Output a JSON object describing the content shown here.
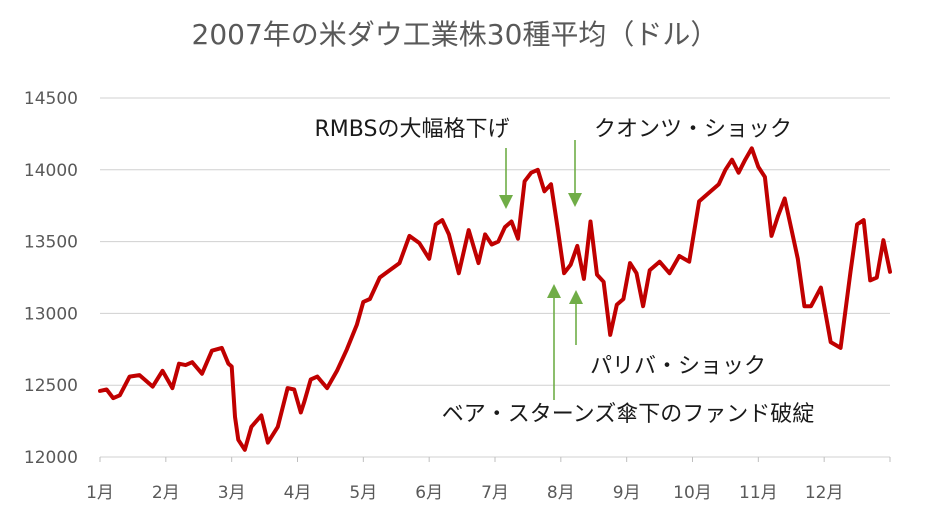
{
  "chart_data": {
    "type": "line",
    "title": "2007年の米ダウ工業株30種平均（ドル）",
    "xlabel": "",
    "ylabel": "",
    "ylim": [
      12000,
      14500
    ],
    "yticks": [
      12000,
      12500,
      13000,
      13500,
      14000,
      14500
    ],
    "grid": true,
    "categories": [
      "1月",
      "2月",
      "3月",
      "4月",
      "5月",
      "6月",
      "7月",
      "8月",
      "9月",
      "10月",
      "11月",
      "12月"
    ],
    "series": [
      {
        "color": "#c00000",
        "x": [
          0,
          0.1,
          0.2,
          0.3,
          0.45,
          0.6,
          0.8,
          0.95,
          1.1,
          1.2,
          1.3,
          1.4,
          1.55,
          1.7,
          1.85,
          1.95,
          2.0,
          2.05,
          2.1,
          2.2,
          2.3,
          2.45,
          2.55,
          2.7,
          2.85,
          2.95,
          3.05,
          3.1,
          3.2,
          3.3,
          3.45,
          3.6,
          3.75,
          3.9,
          4.0,
          4.1,
          4.25,
          4.4,
          4.55,
          4.7,
          4.85,
          5.0,
          5.1,
          5.2,
          5.3,
          5.45,
          5.6,
          5.75,
          5.85,
          5.95,
          6.05,
          6.15,
          6.25,
          6.35,
          6.45,
          6.55,
          6.65,
          6.75,
          6.85,
          6.95,
          7.05,
          7.15,
          7.25,
          7.35,
          7.45,
          7.55,
          7.65,
          7.75,
          7.85,
          7.95,
          8.05,
          8.15,
          8.25,
          8.35,
          8.5,
          8.65,
          8.8,
          8.95,
          9.1,
          9.25,
          9.4,
          9.5,
          9.6,
          9.7,
          9.8,
          9.9,
          10.0,
          10.1,
          10.2,
          10.3,
          10.4,
          10.5,
          10.6,
          10.7,
          10.8,
          10.95,
          11.1,
          11.25,
          11.4,
          11.5,
          11.6,
          11.7,
          11.8,
          11.9,
          12.0
        ],
        "y": [
          12460,
          12470,
          12410,
          12430,
          12560,
          12570,
          12490,
          12600,
          12480,
          12650,
          12640,
          12660,
          12580,
          12740,
          12760,
          12650,
          12630,
          12280,
          12120,
          12050,
          12210,
          12290,
          12100,
          12210,
          12480,
          12470,
          12310,
          12380,
          12540,
          12560,
          12480,
          12600,
          12750,
          12920,
          13080,
          13100,
          13250,
          13300,
          13350,
          13540,
          13490,
          13380,
          13620,
          13650,
          13550,
          13280,
          13580,
          13350,
          13550,
          13480,
          13500,
          13600,
          13640,
          13520,
          13920,
          13980,
          14000,
          13850,
          13900,
          13600,
          13280,
          13340,
          13470,
          13240,
          13640,
          13270,
          13220,
          12850,
          13060,
          13100,
          13350,
          13280,
          13050,
          13300,
          13360,
          13280,
          13400,
          13360,
          13780,
          13840,
          13900,
          14000,
          14070,
          13980,
          14070,
          14150,
          14020,
          13950,
          13540,
          13680,
          13800,
          13590,
          13380,
          13050,
          13050,
          13180,
          12800,
          12760,
          13290,
          13620,
          13650,
          13230,
          13250,
          13510,
          13290
        ]
      }
    ],
    "annotations": [
      {
        "text": "RMBSの大幅格下げ",
        "month": 7.2
      },
      {
        "text": "クオンツ・ショック",
        "month": 8.3
      },
      {
        "text": "ベア・スターンズ傘下のファンド破綻",
        "month": 8.0
      },
      {
        "text": "パリバ・ショック",
        "month": 8.25
      }
    ]
  }
}
